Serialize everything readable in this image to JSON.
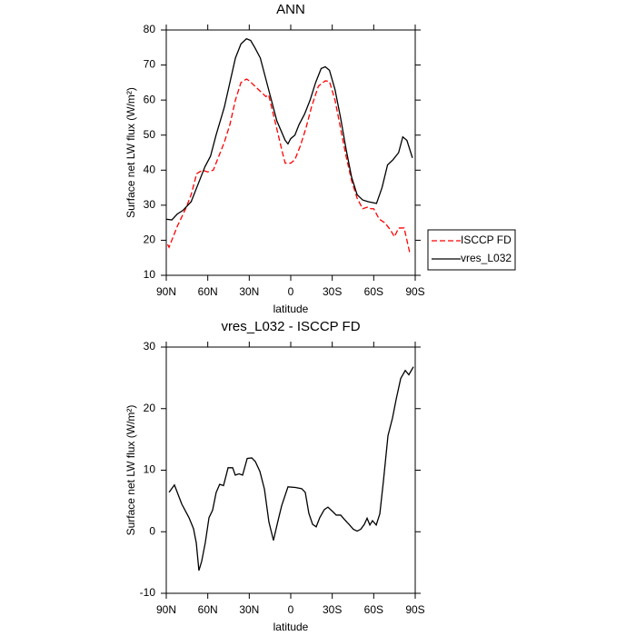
{
  "chart_data": [
    {
      "type": "line",
      "title": "ANN",
      "xlabel": "latitude",
      "ylabel": "Surface net LW flux (W/m²)",
      "xlim": [
        90,
        -90
      ],
      "xticks": [
        {
          "value": 90,
          "label": "90N"
        },
        {
          "value": 60,
          "label": "60N"
        },
        {
          "value": 30,
          "label": "30N"
        },
        0,
        {
          "value": -30,
          "label": "30S"
        },
        {
          "value": -60,
          "label": "60S"
        },
        {
          "value": -90,
          "label": "90S"
        }
      ],
      "ylim": [
        10,
        80
      ],
      "yticks": [
        10,
        20,
        30,
        40,
        50,
        60,
        70,
        80
      ],
      "legend": "right",
      "series": [
        {
          "name": "ISCCP FD",
          "color": "#ff0000",
          "dash": true,
          "x": [
            89,
            88,
            86,
            82,
            76,
            72,
            68,
            64,
            60,
            56,
            52,
            48,
            44,
            40,
            36,
            32,
            30,
            26,
            22,
            18,
            16,
            12,
            6,
            4,
            0,
            -3,
            -7,
            -11,
            -15,
            -20,
            -25,
            -28,
            -32,
            -36,
            -40,
            -44,
            -48,
            -52,
            -56,
            -58,
            -60,
            -64,
            -68,
            -72,
            -75,
            -78,
            -82,
            -86
          ],
          "values": [
            18.8,
            18,
            20,
            24,
            29,
            33,
            39,
            40,
            39.5,
            40,
            44,
            48,
            53,
            60,
            65,
            66,
            65.5,
            64,
            62.5,
            61,
            61.5,
            55,
            45,
            42,
            42,
            43,
            47,
            52,
            58,
            64,
            65.5,
            65.3,
            60,
            52,
            44,
            37,
            32,
            29,
            29.5,
            29,
            29,
            26,
            25,
            23,
            21,
            23.5,
            23.5,
            16.5
          ]
        },
        {
          "name": "vres_L032",
          "color": "#000000",
          "dash": false,
          "x": [
            90,
            86,
            82,
            78,
            72,
            68,
            62,
            58,
            54,
            48,
            44,
            40,
            36,
            32,
            29,
            26,
            22,
            18,
            14,
            10,
            4,
            2,
            0,
            -3,
            -6,
            -10,
            -14,
            -18,
            -22,
            -25,
            -28,
            -32,
            -36,
            -40,
            -44,
            -48,
            -52,
            -56,
            -62,
            -66,
            -70,
            -74,
            -78,
            -81,
            -84,
            -88
          ],
          "values": [
            26,
            25.8,
            27.5,
            28.5,
            31,
            35,
            41,
            44,
            50,
            58,
            65,
            72,
            76,
            77.5,
            77,
            75,
            72,
            66,
            60,
            54,
            48.5,
            47.5,
            49,
            50,
            53,
            56,
            60,
            65,
            69,
            69.5,
            68.5,
            63,
            55,
            46,
            38,
            33,
            31.5,
            31,
            30.5,
            35,
            41.5,
            43,
            45,
            49.5,
            48.5,
            43.5
          ]
        }
      ]
    },
    {
      "type": "line",
      "title": "vres_L032 - ISCCP FD",
      "xlabel": "latitude",
      "ylabel": "Surface net LW flux (W/m²)",
      "xlim": [
        90,
        -90
      ],
      "xticks": [
        {
          "value": 90,
          "label": "90N"
        },
        {
          "value": 60,
          "label": "60N"
        },
        {
          "value": 30,
          "label": "30N"
        },
        0,
        {
          "value": -30,
          "label": "30S"
        },
        {
          "value": -60,
          "label": "60S"
        },
        {
          "value": -90,
          "label": "90S"
        }
      ],
      "ylim": [
        -10,
        30
      ],
      "yticks": [
        -10,
        0,
        10,
        20,
        30
      ],
      "x": [
        88,
        84.1,
        78.8,
        73.6,
        70.3,
        68.3,
        66.4,
        64.4,
        61.8,
        59.1,
        56.5,
        53.9,
        51.4,
        48.6,
        45.3,
        42,
        40.1,
        37.4,
        34.8,
        31.5,
        28.2,
        25.6,
        22.3,
        19,
        15.8,
        12.5,
        9.2,
        6.6,
        2,
        -3.3,
        -7.9,
        -10.5,
        -13.1,
        -15.8,
        -18.4,
        -21,
        -24.3,
        -26.9,
        -30.2,
        -32.9,
        -36.1,
        -38.8,
        -42.1,
        -45.3,
        -48,
        -50.6,
        -53.2,
        -55.2,
        -57.2,
        -59.1,
        -61.8,
        -64.4,
        -67,
        -70.3,
        -73.6,
        -76.2,
        -79.5,
        -82.8,
        -85.4,
        -88.7
      ],
      "values": [
        6.4,
        7.6,
        4.5,
        2.3,
        0.5,
        -1.8,
        -6.3,
        -4.8,
        -1.8,
        2.3,
        3.5,
        6.4,
        7.7,
        7.5,
        10.4,
        10.4,
        9.2,
        9.4,
        9.2,
        11.9,
        12,
        11.4,
        9.8,
        6.9,
        1.6,
        -1.4,
        1.8,
        4.2,
        7.3,
        7.2,
        7,
        6.4,
        3,
        1.2,
        0.8,
        2.3,
        3.6,
        4,
        3.3,
        2.7,
        2.7,
        2,
        1.2,
        0.4,
        0.1,
        0.4,
        1.2,
        2.2,
        1.1,
        1.8,
        1.1,
        2.9,
        8.2,
        15.6,
        18.5,
        21.5,
        24.9,
        26.2,
        25.5,
        26.8
      ],
      "color": "#000000"
    }
  ]
}
